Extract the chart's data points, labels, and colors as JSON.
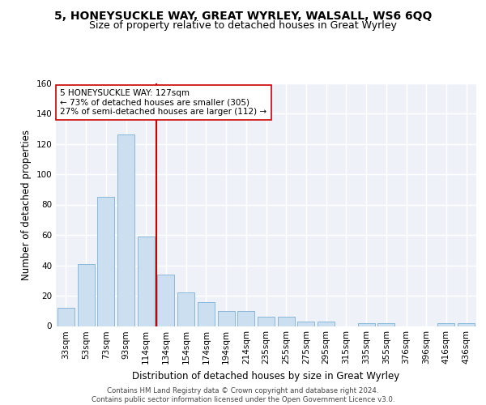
{
  "title1": "5, HONEYSUCKLE WAY, GREAT WYRLEY, WALSALL, WS6 6QQ",
  "title2": "Size of property relative to detached houses in Great Wyrley",
  "xlabel": "Distribution of detached houses by size in Great Wyrley",
  "ylabel": "Number of detached properties",
  "bar_color": "#ccdff0",
  "bar_edge_color": "#7ab0d4",
  "categories": [
    "33sqm",
    "53sqm",
    "73sqm",
    "93sqm",
    "114sqm",
    "134sqm",
    "154sqm",
    "174sqm",
    "194sqm",
    "214sqm",
    "235sqm",
    "255sqm",
    "275sqm",
    "295sqm",
    "315sqm",
    "335sqm",
    "355sqm",
    "376sqm",
    "396sqm",
    "416sqm",
    "436sqm"
  ],
  "values": [
    12,
    41,
    85,
    126,
    59,
    34,
    22,
    16,
    10,
    10,
    6,
    6,
    3,
    3,
    0,
    2,
    2,
    0,
    0,
    2,
    2
  ],
  "ylim": [
    0,
    160
  ],
  "yticks": [
    0,
    20,
    40,
    60,
    80,
    100,
    120,
    140,
    160
  ],
  "vline_x": 4.5,
  "vline_color": "#cc0000",
  "annotation_line1": "5 HONEYSUCKLE WAY: 127sqm",
  "annotation_line2": "← 73% of detached houses are smaller (305)",
  "annotation_line3": "27% of semi-detached houses are larger (112) →",
  "annotation_box_color": "#ffffff",
  "annotation_box_edge": "#cc0000",
  "footer1": "Contains HM Land Registry data © Crown copyright and database right 2024.",
  "footer2": "Contains public sector information licensed under the Open Government Licence v3.0.",
  "bg_color": "#eef2f8",
  "grid_color": "#ffffff",
  "title1_fontsize": 10,
  "title2_fontsize": 9,
  "tick_fontsize": 7.5,
  "ylabel_fontsize": 8.5,
  "xlabel_fontsize": 8.5,
  "annot_fontsize": 7.5
}
